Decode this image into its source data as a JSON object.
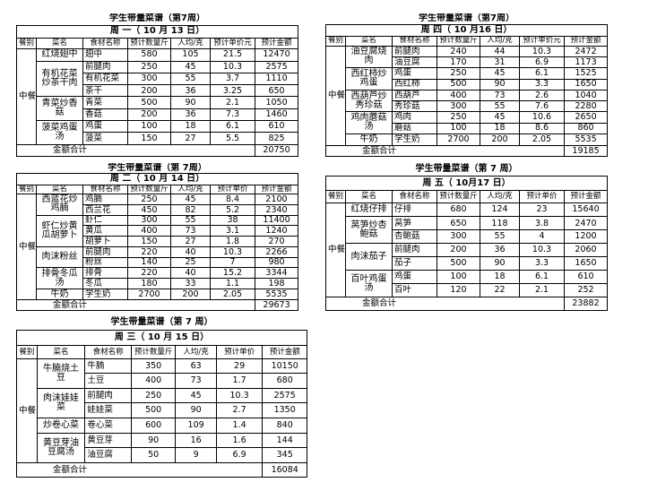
{
  "tables": [
    {
      "title": "学生带量菜谱（第7周）",
      "date": "周 一（ 10 月 13 日）",
      "headers": [
        "餐别",
        "菜名",
        "食材名称",
        "预计数量斤",
        "人均/克",
        "预计单价元",
        "预计金额"
      ],
      "meal": "中餐",
      "dishes": [
        {
          "name": "红烧翅中",
          "items": [
            [
              "翅中",
              580,
              105,
              21.5,
              12470
            ]
          ]
        },
        {
          "name": "有机花菜炒茶干肉",
          "items": [
            [
              "前腿肉",
              250,
              45,
              10.3,
              2575
            ],
            [
              "有机花菜",
              300,
              55,
              3.7,
              1110
            ],
            [
              "茶干",
              200,
              36,
              3.25,
              650
            ]
          ]
        },
        {
          "name": "青菜炒香菇",
          "items": [
            [
              "青菜",
              500,
              90,
              2.1,
              1050
            ],
            [
              "香菇",
              200,
              36,
              7.3,
              1460
            ]
          ]
        },
        {
          "name": "菠菜鸡蛋汤",
          "items": [
            [
              "鸡蛋",
              100,
              18,
              6.1,
              610
            ],
            [
              "菠菜",
              150,
              27,
              5.5,
              825
            ]
          ]
        }
      ],
      "total_label": "金额合计",
      "total": 20750
    },
    {
      "title": "学生带量菜谱（第7周）",
      "date": "周 四（ 10 月16 日）",
      "headers": [
        "餐别",
        "菜名",
        "食材名称",
        "预计数量斤",
        "人均/克",
        "预计单价元",
        "预计金额"
      ],
      "meal": "中餐",
      "dishes": [
        {
          "name": "油豆腐烧肉",
          "items": [
            [
              "前腿肉",
              240,
              44,
              10.3,
              2472
            ],
            [
              "油豆腐",
              170,
              31,
              6.9,
              1173
            ]
          ]
        },
        {
          "name": "西红柿炒鸡蛋",
          "items": [
            [
              "鸡蛋",
              250,
              45,
              6.1,
              1525
            ],
            [
              "西红柿",
              500,
              90,
              3.3,
              1650
            ]
          ]
        },
        {
          "name": "西葫芦炒秀珍菇",
          "items": [
            [
              "西葫芦",
              400,
              73,
              2.6,
              1040
            ],
            [
              "秀珍菇",
              300,
              55,
              7.6,
              2280
            ]
          ]
        },
        {
          "name": "鸡肉蘑菇汤",
          "items": [
            [
              "鸡肉",
              250,
              45,
              10.6,
              2650
            ],
            [
              "蘑菇",
              100,
              18,
              8.6,
              860
            ]
          ]
        },
        {
          "name": "牛奶",
          "items": [
            [
              "学生奶",
              2700,
              200,
              2.05,
              5535
            ]
          ]
        }
      ],
      "total_label": "金额合计",
      "total": 19185
    },
    {
      "title": "学生带量菜谱（第 7周）",
      "date": "周 二（ 10 月 14 日）",
      "headers": [
        "餐别",
        "菜名",
        "食材名称",
        "预计数量斤",
        "人均/克",
        "预计单价",
        "预计金额"
      ],
      "meal": "中餐",
      "dishes": [
        {
          "name": "西蓝花炒鸡腩",
          "items": [
            [
              "鸡腩",
              250,
              45,
              8.4,
              2100
            ],
            [
              "西兰花",
              450,
              82,
              5.2,
              2340
            ]
          ]
        },
        {
          "name": "虾仁炒黄瓜胡萝卜",
          "items": [
            [
              "虾仁",
              300,
              55,
              38,
              11400
            ],
            [
              "黄瓜",
              400,
              73,
              3.1,
              1240
            ],
            [
              "胡萝卜",
              150,
              27,
              1.8,
              270
            ]
          ]
        },
        {
          "name": "肉沫粉丝",
          "items": [
            [
              "前腿肉",
              220,
              40,
              10.3,
              2266
            ],
            [
              "粉丝",
              140,
              25,
              7,
              980
            ]
          ]
        },
        {
          "name": "排骨冬瓜汤",
          "items": [
            [
              "排骨",
              220,
              40,
              15.2,
              3344
            ],
            [
              "冬瓜",
              180,
              33,
              1.1,
              198
            ]
          ]
        },
        {
          "name": "牛奶",
          "items": [
            [
              "学生奶",
              2700,
              200,
              2.05,
              5535
            ]
          ]
        }
      ],
      "total_label": "金额合计",
      "total": 29673
    },
    {
      "title": "学生带量菜谱（第 7 周）",
      "date": "周 五（ 10月17 日）",
      "headers": [
        "餐别",
        "菜名",
        "食材名称",
        "预计数量斤",
        "人均/克",
        "预计单价",
        "预计金额"
      ],
      "meal": "中餐",
      "dishes": [
        {
          "name": "红烧仔排",
          "items": [
            [
              "仔排",
              680,
              124,
              23,
              15640
            ]
          ]
        },
        {
          "name": "莴笋炒杏鲍菇",
          "items": [
            [
              "莴笋",
              650,
              118,
              3.8,
              2470
            ],
            [
              "杏鲍菇",
              300,
              55,
              4,
              1200
            ]
          ]
        },
        {
          "name": "肉沫茄子",
          "items": [
            [
              "前腿肉",
              200,
              36,
              10.3,
              2060
            ],
            [
              "茄子",
              500,
              90,
              3.3,
              1650
            ]
          ]
        },
        {
          "name": "百叶鸡蛋汤",
          "items": [
            [
              "鸡蛋",
              100,
              18,
              6.1,
              610
            ],
            [
              "百叶",
              120,
              22,
              2.1,
              252
            ]
          ]
        }
      ],
      "total_label": "金额合计",
      "total": 23882
    },
    {
      "title": "学生带量菜谱（第 7 周）",
      "date": "周 三（ 10 月 15 日）",
      "headers": [
        "餐别",
        "菜名",
        "食材名称",
        "预计数量斤",
        "人均/克",
        "预计单价",
        "预计金额"
      ],
      "meal": "中餐",
      "dishes": [
        {
          "name": "牛腩烧土豆",
          "items": [
            [
              "牛腩",
              350,
              63,
              29,
              10150
            ],
            [
              "土豆",
              400,
              73,
              1.7,
              680
            ]
          ]
        },
        {
          "name": "肉沫娃娃菜",
          "items": [
            [
              "前腿肉",
              250,
              45,
              10.3,
              2575
            ],
            [
              "娃娃菜",
              500,
              90,
              2.7,
              1350
            ]
          ]
        },
        {
          "name": "炒卷心菜",
          "items": [
            [
              "卷心菜",
              600,
              109,
              1.4,
              840
            ]
          ]
        },
        {
          "name": "黄豆芽油豆腐汤",
          "items": [
            [
              "黄豆芽",
              90,
              16,
              1.6,
              144
            ],
            [
              "油豆腐",
              50,
              9,
              6.9,
              345
            ]
          ]
        }
      ],
      "total_label": "金额合计",
      "total": 16084
    }
  ]
}
